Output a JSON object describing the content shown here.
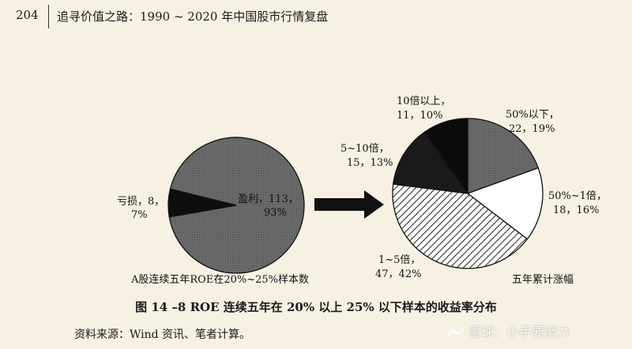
{
  "header": {
    "page_number": "204",
    "running_title": "追寻价值之路：1990 ~ 2020 年中国股市行情复盘"
  },
  "figure": {
    "caption": "图 14 –8   ROE 连续五年在 20% 以上 25% 以下样本的收益率分布",
    "source": "资料来源：Wind 资讯、笔者计算。"
  },
  "watermark": {
    "text": "雪球：小手要努力"
  },
  "chart_data": [
    {
      "type": "pie",
      "title": "A股连续五年ROE在20%~25%样本数",
      "slices": [
        {
          "name": "盈利",
          "value": 113,
          "percent": 93,
          "label_line1": "盈利，113，",
          "label_line2": "93%"
        },
        {
          "name": "亏损",
          "value": 8,
          "percent": 7,
          "label_line1": "亏损，8，",
          "label_line2": "7%"
        }
      ]
    },
    {
      "type": "pie",
      "title": "五年累计涨幅",
      "slices": [
        {
          "name": "50%以下",
          "value": 22,
          "percent": 19,
          "label_line1": "50%以下，",
          "label_line2": "22，19%"
        },
        {
          "name": "50%~1倍",
          "value": 18,
          "percent": 16,
          "label_line1": "50%~1倍，",
          "label_line2": "18，16%"
        },
        {
          "name": "1~5倍",
          "value": 47,
          "percent": 42,
          "label_line1": "1~5倍，",
          "label_line2": "47，42%"
        },
        {
          "name": "5~10倍",
          "value": 15,
          "percent": 13,
          "label_line1": "5~10倍，",
          "label_line2": "15，13%"
        },
        {
          "name": "10倍以上",
          "value": 11,
          "percent": 10,
          "label_line1": "10倍以上，",
          "label_line2": "11，10%"
        }
      ]
    }
  ]
}
